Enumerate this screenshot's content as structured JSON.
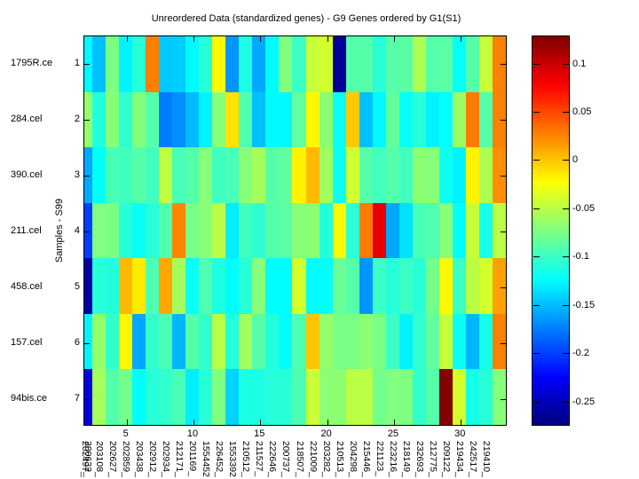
{
  "figure": {
    "title": "Unreordered Data (standardized genes) - G9 Genes ordered by G1(S1)"
  },
  "y_axis": {
    "label": "Samples - S99",
    "tick_labels": [
      "1",
      "2",
      "3",
      "4",
      "5",
      "6",
      "7"
    ],
    "sample_names": [
      "1795R.ce",
      "284.cel",
      "390.cel",
      "211.cel",
      "458.cel",
      "157.cel",
      "94bis.ce"
    ]
  },
  "x_axis": {
    "tick_labels": [
      "5",
      "10",
      "15",
      "20",
      "25",
      "30"
    ],
    "tick_columns": [
      5,
      10,
      15,
      20,
      25,
      30
    ],
    "gene_labels": [
      "200632_",
      "202497_",
      "203108_",
      "202627_",
      "202859_",
      "203438_",
      "202912_",
      "202934_",
      "212171_",
      "201169_",
      "1554452",
      "226452_",
      "1553392",
      "210512_",
      "211527_",
      "222646_",
      "200737_",
      "218507_",
      "221009_",
      "203282_",
      "210513_",
      "204298_",
      "215446_",
      "221123_",
      "223216_",
      "218149_",
      "232693_",
      "212775_",
      "209122_",
      "219434_",
      "242517_",
      "219410_"
    ]
  },
  "colorbar": {
    "tick_labels": [
      "0.1",
      "0.05",
      "0",
      "-0.05",
      "-0.1",
      "-0.15",
      "-0.2",
      "-0.25"
    ],
    "tick_values": [
      0.1,
      0.05,
      0,
      -0.05,
      -0.1,
      -0.15,
      -0.2,
      -0.25
    ],
    "vmin": -0.275,
    "vmax": 0.129
  },
  "chart_data": {
    "type": "heatmap",
    "title": "Unreordered Data (standardized genes) - G9 Genes ordered by G1(S1)",
    "ylabel": "Samples - S99",
    "colormap": "jet",
    "clim": [
      -0.275,
      0.129
    ],
    "rows": [
      "1795R.ce",
      "284.cel",
      "390.cel",
      "211.cel",
      "458.cel",
      "157.cel",
      "94bis.ce"
    ],
    "columns": [
      "200632_",
      "202497_",
      "203108_",
      "202627_",
      "202859_",
      "203438_",
      "202912_",
      "202934_",
      "212171_",
      "201169_",
      "1554452",
      "226452_",
      "1553392",
      "210512_",
      "211527_",
      "222646_",
      "200737_",
      "218507_",
      "221009_",
      "203282_",
      "210513_",
      "204298_",
      "215446_",
      "221123_",
      "223216_",
      "218149_",
      "232693_",
      "212775_",
      "209122_",
      "219434_",
      "242517_",
      "219410_"
    ],
    "values": [
      [
        -0.125,
        -0.148,
        -0.075,
        -0.128,
        -0.108,
        0.028,
        -0.145,
        -0.143,
        -0.125,
        -0.108,
        -0.02,
        -0.165,
        -0.112,
        -0.158,
        -0.125,
        -0.072,
        -0.1,
        -0.045,
        -0.04,
        -0.265,
        -0.09,
        -0.09,
        -0.108,
        -0.09,
        -0.088,
        -0.055,
        -0.09,
        -0.088,
        -0.122,
        -0.09,
        -0.045,
        0.028
      ],
      [
        -0.065,
        -0.11,
        -0.07,
        -0.105,
        -0.072,
        -0.09,
        -0.175,
        -0.168,
        -0.15,
        -0.128,
        -0.07,
        -0.012,
        -0.092,
        -0.148,
        -0.125,
        -0.125,
        -0.085,
        -0.02,
        -0.068,
        -0.12,
        -0.002,
        -0.148,
        -0.125,
        -0.085,
        -0.12,
        -0.108,
        -0.128,
        -0.122,
        -0.062,
        0.03,
        -0.09,
        0.028
      ],
      [
        -0.158,
        -0.122,
        -0.095,
        -0.098,
        -0.09,
        -0.098,
        -0.048,
        -0.095,
        -0.09,
        -0.07,
        -0.098,
        -0.095,
        -0.07,
        -0.058,
        -0.09,
        -0.085,
        -0.018,
        0.005,
        -0.06,
        -0.12,
        -0.042,
        -0.09,
        -0.098,
        -0.09,
        -0.098,
        -0.068,
        -0.07,
        -0.118,
        -0.128,
        -0.018,
        -0.055,
        0.022
      ],
      [
        -0.2,
        -0.073,
        -0.075,
        -0.108,
        -0.12,
        -0.108,
        -0.092,
        0.025,
        -0.075,
        -0.07,
        -0.05,
        -0.13,
        -0.098,
        -0.105,
        -0.09,
        -0.088,
        -0.07,
        -0.068,
        -0.11,
        -0.02,
        -0.107,
        0.03,
        0.09,
        -0.158,
        -0.135,
        -0.095,
        -0.092,
        -0.07,
        -0.123,
        -0.045,
        -0.115,
        -0.05
      ],
      [
        -0.26,
        -0.108,
        -0.11,
        0.005,
        -0.015,
        -0.093,
        0.012,
        -0.058,
        -0.12,
        -0.092,
        -0.112,
        -0.124,
        -0.108,
        -0.07,
        -0.124,
        -0.124,
        -0.04,
        -0.124,
        -0.122,
        -0.082,
        -0.09,
        -0.165,
        -0.1,
        -0.108,
        -0.1,
        -0.108,
        -0.078,
        -0.02,
        -0.1,
        -0.05,
        -0.04,
        0.015
      ],
      [
        -0.128,
        -0.065,
        -0.104,
        -0.02,
        -0.158,
        -0.104,
        -0.093,
        -0.152,
        -0.09,
        -0.104,
        -0.05,
        -0.11,
        -0.06,
        -0.09,
        -0.11,
        -0.124,
        -0.093,
        0.0,
        -0.065,
        -0.075,
        -0.075,
        -0.068,
        -0.075,
        -0.1,
        -0.128,
        -0.104,
        -0.085,
        -0.045,
        -0.12,
        -0.152,
        -0.115,
        0.028
      ],
      [
        -0.24,
        -0.058,
        -0.09,
        -0.078,
        -0.124,
        -0.108,
        -0.104,
        -0.094,
        -0.13,
        -0.108,
        -0.073,
        -0.14,
        -0.113,
        -0.113,
        -0.108,
        -0.108,
        -0.094,
        -0.044,
        -0.068,
        -0.068,
        -0.05,
        -0.05,
        -0.078,
        -0.073,
        -0.073,
        -0.104,
        -0.09,
        0.128,
        -0.04,
        -0.115,
        -0.108,
        -0.07
      ]
    ]
  }
}
